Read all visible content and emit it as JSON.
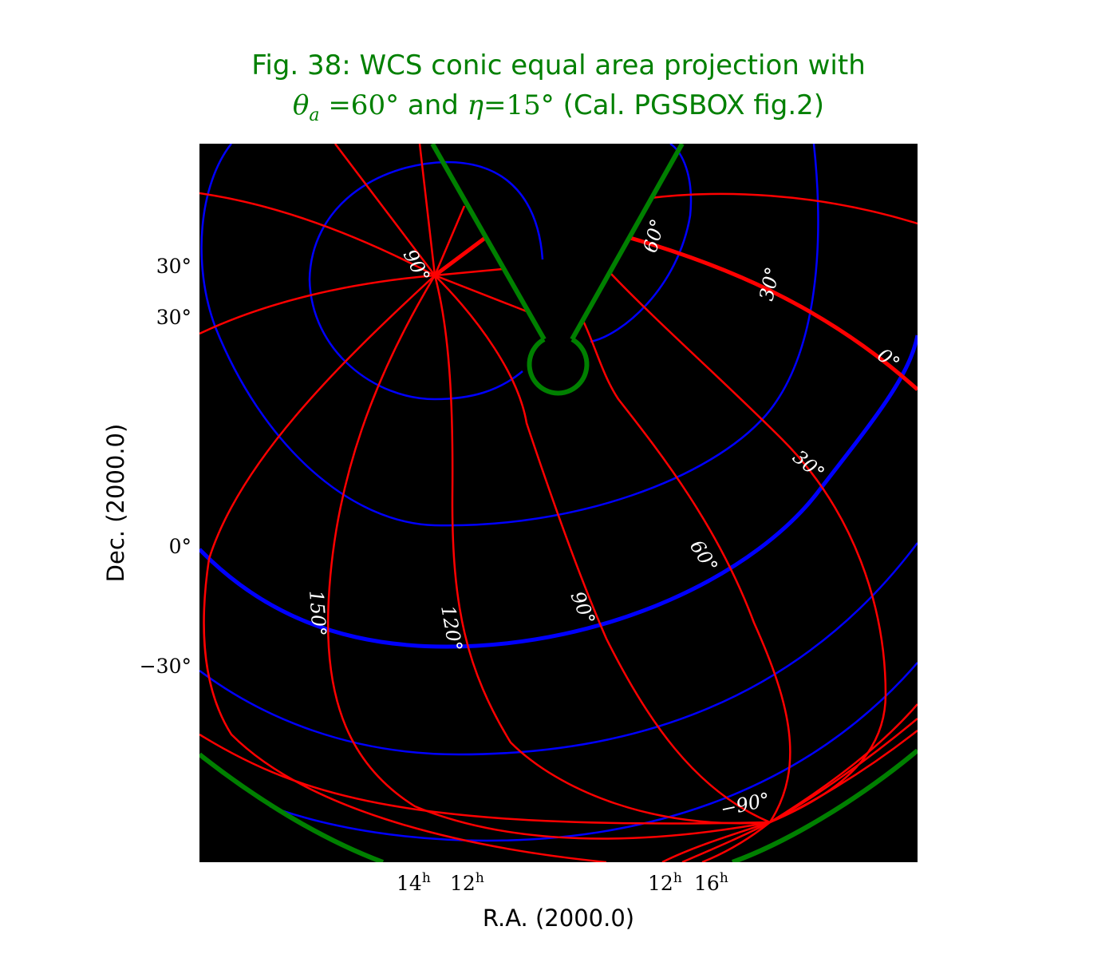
{
  "chart_data": {
    "type": "map-projection",
    "title_line1": "Fig. 38: WCS conic equal area projection with",
    "title_line2_pre_theta": "θ",
    "title_line2_theta_sub": "a",
    "title_line2_theta_val": " =60°",
    "title_line2_and": " and ",
    "title_line2_eta": "η",
    "title_line2_eta_val": "=15°",
    "title_line2_post": " (Cal. PGSBOX fig.2)",
    "xlabel": "R.A. (2000.0)",
    "ylabel": "Dec. (2000.0)",
    "background": "#000000",
    "colors": {
      "title": "#008000",
      "meridians": "#ff0000",
      "parallels": "#0000ff",
      "boundary": "#008000",
      "curve_labels": "#ffffff"
    },
    "y_tick_labels": [
      "30°",
      "30°",
      "0°",
      "−30°"
    ],
    "x_tick_labels": [
      {
        "hour": "14",
        "sup": "h"
      },
      {
        "hour": "12",
        "sup": "h"
      },
      {
        "hour": "12",
        "sup": "h"
      },
      {
        "hour": "16",
        "sup": "h"
      }
    ],
    "curve_labels": [
      "90°",
      "60°",
      "30°",
      "0°",
      "30°",
      "60°",
      "90°",
      "120°",
      "150°",
      "−90°"
    ],
    "grid_pole": "native pole of the oblique graticule",
    "bold_parallel": "0°",
    "bold_meridian": "0°"
  }
}
